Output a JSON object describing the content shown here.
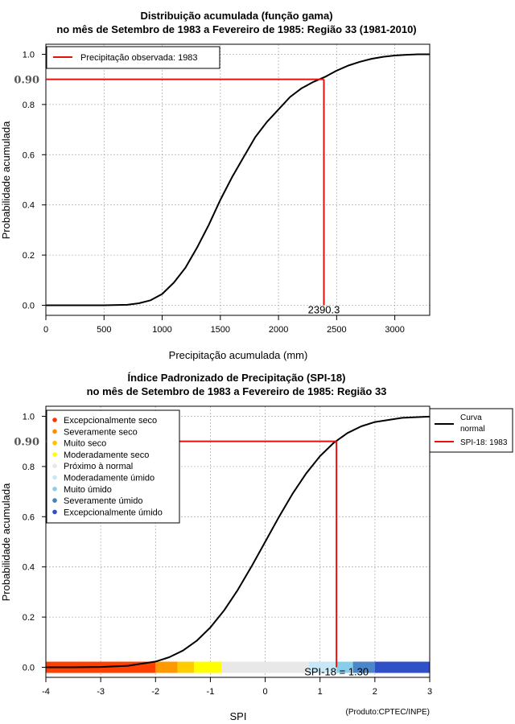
{
  "chart_data": [
    {
      "type": "line",
      "title_line1": "Distribuição acumulada (função gama)",
      "title_line2": "no mês de Setembro de 1983 a Fevereiro de 1985: Região 33 (1981-2010)",
      "xlabel": "Precipitação acumulada (mm)",
      "ylabel": "Probabilidade acumulada",
      "xlim": [
        0,
        3300
      ],
      "ylim": [
        -0.04,
        1.04
      ],
      "x_ticks": [
        0,
        500,
        1000,
        1500,
        2000,
        2500,
        3000
      ],
      "x_tick_labels": [
        "0",
        "500",
        "1000",
        "1500",
        "2000",
        "2500",
        "3000"
      ],
      "y_ticks": [
        0,
        0.2,
        0.4,
        0.6,
        0.8,
        1.0
      ],
      "y_tick_labels": [
        "0.0",
        "0.2",
        "0.4",
        "0.6",
        "0.8",
        "1.0"
      ],
      "grid": true,
      "legend": {
        "placement": "top-left",
        "entries": [
          {
            "label": "Precipitação observada: 1983",
            "color": "#e8100c"
          }
        ]
      },
      "series": [
        {
          "color": "#000000",
          "x": [
            0,
            500,
            700,
            800,
            900,
            1000,
            1100,
            1200,
            1300,
            1400,
            1500,
            1600,
            1700,
            1800,
            1900,
            2000,
            2100,
            2200,
            2300,
            2400,
            2500,
            2600,
            2700,
            2800,
            2900,
            3000,
            3100,
            3200,
            3300
          ],
          "y": [
            0.0,
            0.0,
            0.002,
            0.008,
            0.02,
            0.045,
            0.09,
            0.15,
            0.23,
            0.32,
            0.42,
            0.51,
            0.59,
            0.67,
            0.73,
            0.78,
            0.83,
            0.865,
            0.89,
            0.91,
            0.935,
            0.955,
            0.97,
            0.982,
            0.99,
            0.995,
            0.998,
            1.0,
            1.0
          ]
        }
      ],
      "marker": {
        "x": 2390.3,
        "y": 0.9,
        "y_label": "0.90",
        "x_label": "2390.3",
        "color": "#e8100c"
      }
    },
    {
      "type": "line",
      "title_line1": "Índice Padronizado de Precipitação (SPI-18)",
      "title_line2": "no mês de Setembro de 1983 a Fevereiro de 1985: Região 33",
      "xlabel": "SPI",
      "ylabel": "Probabilidade acumulada",
      "xlim": [
        -4,
        3
      ],
      "ylim": [
        -0.04,
        1.04
      ],
      "x_ticks": [
        -4,
        -3,
        -2,
        -1,
        0,
        1,
        2,
        3
      ],
      "x_tick_labels": [
        "-4",
        "-3",
        "-2",
        "-1",
        "0",
        "1",
        "2",
        "3"
      ],
      "y_ticks": [
        0,
        0.2,
        0.4,
        0.6,
        0.8,
        1.0
      ],
      "y_tick_labels": [
        "0.0",
        "0.2",
        "0.4",
        "0.6",
        "0.8",
        "1.0"
      ],
      "grid": true,
      "legend": {
        "placement": "top-right",
        "entries": [
          {
            "label": "Curva normal",
            "label_line1": "Curva",
            "label_line2": "normal",
            "color": "#000000"
          },
          {
            "label": "SPI-18: 1983",
            "color": "#e8100c"
          }
        ]
      },
      "category_legend": {
        "placement": "top-left",
        "entries": [
          {
            "label": "Excepcionalmente seco",
            "color": "#ff3300"
          },
          {
            "label": "Severamente seco",
            "color": "#ff8c00"
          },
          {
            "label": "Muito seco",
            "color": "#ffc000"
          },
          {
            "label": "Moderadamente seco",
            "color": "#ffff00"
          },
          {
            "label": "Próximo à normal",
            "color": "#e8e8e8"
          },
          {
            "label": "Moderadamente úmido",
            "color": "#c8e8f8"
          },
          {
            "label": "Muito úmido",
            "color": "#87ceeb"
          },
          {
            "label": "Severamente úmido",
            "color": "#4682b4"
          },
          {
            "label": "Excepcionalmente úmido",
            "color": "#3050c8"
          }
        ]
      },
      "color_band": [
        {
          "from": -4,
          "to": -2,
          "color": "#ff4000"
        },
        {
          "from": -2,
          "to": -1.6,
          "color": "#ff9900"
        },
        {
          "from": -1.6,
          "to": -1.3,
          "color": "#ffcc00"
        },
        {
          "from": -1.3,
          "to": -0.8,
          "color": "#ffff00"
        },
        {
          "from": -0.8,
          "to": 0.8,
          "color": "#e8e8e8"
        },
        {
          "from": 0.8,
          "to": 1.3,
          "color": "#c8e8f8"
        },
        {
          "from": 1.3,
          "to": 1.6,
          "color": "#87ceeb"
        },
        {
          "from": 1.6,
          "to": 2.0,
          "color": "#4a86c8"
        },
        {
          "from": 2.0,
          "to": 3,
          "color": "#3050c8"
        }
      ],
      "series": [
        {
          "color": "#000000",
          "x": [
            -4,
            -3.5,
            -3,
            -2.5,
            -2,
            -1.75,
            -1.5,
            -1.25,
            -1,
            -0.75,
            -0.5,
            -0.25,
            0,
            0.25,
            0.5,
            0.75,
            1,
            1.25,
            1.5,
            1.75,
            2,
            2.5,
            3
          ],
          "y": [
            3e-05,
            0.0002,
            0.0013,
            0.0062,
            0.0228,
            0.0401,
            0.0668,
            0.1056,
            0.1587,
            0.2266,
            0.3085,
            0.4013,
            0.5,
            0.5987,
            0.6915,
            0.7734,
            0.8413,
            0.8944,
            0.9332,
            0.9599,
            0.9772,
            0.9938,
            0.9987
          ]
        }
      ],
      "marker": {
        "x": 1.3,
        "y": 0.9,
        "y_label": "0.90",
        "x_label": "SPI-18 = 1.30",
        "color": "#e8100c"
      },
      "source_note": "(Produto:CPTEC/INPE)"
    }
  ]
}
